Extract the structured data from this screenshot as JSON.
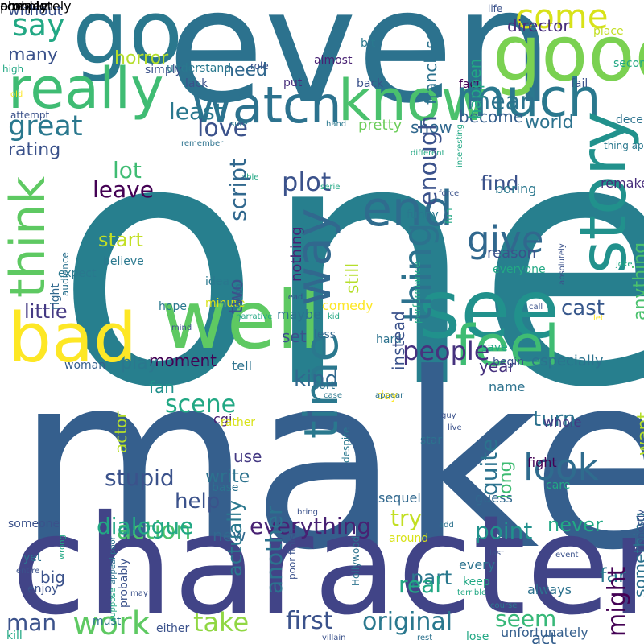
{
  "words": [
    {
      "text": "one",
      "color": "#277f8e",
      "vertical": false
    },
    {
      "text": "make",
      "color": "#355f8d",
      "vertical": false
    },
    {
      "text": "character",
      "color": "#414487",
      "vertical": false
    },
    {
      "text": "even",
      "color": "#2c728e",
      "vertical": false
    },
    {
      "text": "go",
      "color": "#2a788e",
      "vertical": false
    },
    {
      "text": "good",
      "color": "#7ad151",
      "vertical": false
    },
    {
      "text": "well",
      "color": "#5ec962",
      "vertical": false
    },
    {
      "text": "see",
      "color": "#21918c",
      "vertical": false
    },
    {
      "text": "bad",
      "color": "#fde725",
      "vertical": false
    },
    {
      "text": "really",
      "color": "#3fbc73",
      "vertical": false
    },
    {
      "text": "watch",
      "color": "#2c728e",
      "vertical": false
    },
    {
      "text": "know",
      "color": "#4ac16d",
      "vertical": false
    },
    {
      "text": "much",
      "color": "#2a788e",
      "vertical": false
    },
    {
      "text": "end",
      "color": "#2f6c8e",
      "vertical": false
    },
    {
      "text": "story",
      "color": "#21918c",
      "vertical": true
    },
    {
      "text": "feel",
      "color": "#3fbc73",
      "vertical": false
    },
    {
      "text": "way",
      "color": "#31688e",
      "vertical": true
    },
    {
      "text": "time",
      "color": "#2a788e",
      "vertical": true
    },
    {
      "text": "look",
      "color": "#2f6c8e",
      "vertical": false
    },
    {
      "text": "think",
      "color": "#5ec962",
      "vertical": true
    },
    {
      "text": "come",
      "color": "#d8e219",
      "vertical": false
    },
    {
      "text": "say",
      "color": "#22a884",
      "vertical": false
    },
    {
      "text": "give",
      "color": "#31688e",
      "vertical": false
    },
    {
      "text": "thing",
      "color": "#2c728e",
      "vertical": true
    },
    {
      "text": "great",
      "color": "#2a788e",
      "vertical": false
    },
    {
      "text": "people",
      "color": "#46327e",
      "vertical": false
    },
    {
      "text": "work",
      "color": "#5ec962",
      "vertical": false
    },
    {
      "text": "take",
      "color": "#90d743",
      "vertical": false
    },
    {
      "text": "first",
      "color": "#3b528b",
      "vertical": false
    },
    {
      "text": "original",
      "color": "#2a788e",
      "vertical": false
    },
    {
      "text": "plot",
      "color": "#3b528b",
      "vertical": false
    },
    {
      "text": "love",
      "color": "#3b528b",
      "vertical": false
    },
    {
      "text": "least",
      "color": "#2a788e",
      "vertical": false
    },
    {
      "text": "mean",
      "color": "#2c728e",
      "vertical": false
    },
    {
      "text": "scene",
      "color": "#22a884",
      "vertical": false
    },
    {
      "text": "action",
      "color": "#4ac16d",
      "vertical": false
    },
    {
      "text": "everything",
      "color": "#482173",
      "vertical": false
    },
    {
      "text": "try",
      "color": "#c2df23",
      "vertical": false
    },
    {
      "text": "seem",
      "color": "#37b878",
      "vertical": false
    },
    {
      "text": "man",
      "color": "#3b528b",
      "vertical": false
    },
    {
      "text": "lot",
      "color": "#3fbc73",
      "vertical": false
    },
    {
      "text": "leave",
      "color": "#440154",
      "vertical": false
    },
    {
      "text": "find",
      "color": "#3b528b",
      "vertical": false
    },
    {
      "text": "kind",
      "color": "#31688e",
      "vertical": false
    },
    {
      "text": "point",
      "color": "#21918c",
      "vertical": false
    },
    {
      "text": "never",
      "color": "#22a884",
      "vertical": false
    },
    {
      "text": "turn",
      "color": "#2c728e",
      "vertical": false
    },
    {
      "text": "cast",
      "color": "#38588c",
      "vertical": false
    },
    {
      "text": "little",
      "color": "#443983",
      "vertical": false
    },
    {
      "text": "start",
      "color": "#c2df23",
      "vertical": false
    },
    {
      "text": "horror",
      "color": "#b5de2b",
      "vertical": false
    },
    {
      "text": "many",
      "color": "#3b528b",
      "vertical": false
    },
    {
      "text": "need",
      "color": "#31688e",
      "vertical": false
    },
    {
      "text": "director",
      "color": "#472d7b",
      "vertical": false
    },
    {
      "text": "world",
      "color": "#2c728e",
      "vertical": false
    },
    {
      "text": "become",
      "color": "#355f8d",
      "vertical": false
    },
    {
      "text": "rating",
      "color": "#3b528b",
      "vertical": false
    },
    {
      "text": "show",
      "color": "#31688e",
      "vertical": false
    },
    {
      "text": "part",
      "color": "#2a788e",
      "vertical": false
    },
    {
      "text": "real",
      "color": "#22a884",
      "vertical": false
    },
    {
      "text": "far",
      "color": "#2a788e",
      "vertical": false
    },
    {
      "text": "moment",
      "color": "#440154",
      "vertical": false
    },
    {
      "text": "fan",
      "color": "#21918c",
      "vertical": false
    },
    {
      "text": "set",
      "color": "#3b528b",
      "vertical": false
    },
    {
      "text": "write",
      "color": "#2c728e",
      "vertical": false
    },
    {
      "text": "big",
      "color": "#3b528b",
      "vertical": false
    },
    {
      "text": "new",
      "color": "#31688e",
      "vertical": false
    },
    {
      "text": "use",
      "color": "#443983",
      "vertical": false
    },
    {
      "text": "act",
      "color": "#355f8d",
      "vertical": false
    },
    {
      "text": "year",
      "color": "#46327e",
      "vertical": false
    },
    {
      "text": "especially",
      "color": "#2c728e",
      "vertical": false
    },
    {
      "text": "without",
      "color": "#3b528b",
      "vertical": false
    },
    {
      "text": "play",
      "color": "#2a788e",
      "vertical": false
    },
    {
      "text": "pretty",
      "color": "#6ccd5a",
      "vertical": false
    },
    {
      "text": "reason",
      "color": "#3b528b",
      "vertical": false
    },
    {
      "text": "boring",
      "color": "#2a788e",
      "vertical": false
    },
    {
      "text": "funny",
      "color": "#2a788e",
      "vertical": false
    },
    {
      "text": "whole",
      "color": "#443983",
      "vertical": false
    },
    {
      "text": "always",
      "color": "#2c728e",
      "vertical": false
    },
    {
      "text": "every",
      "color": "#2c728e",
      "vertical": false
    },
    {
      "text": "guess",
      "color": "#31688e",
      "vertical": false
    },
    {
      "text": "sequel",
      "color": "#31688e",
      "vertical": false
    },
    {
      "text": "unfortunately",
      "color": "#355f8d",
      "vertical": false
    },
    {
      "text": "remake",
      "color": "#472d7b",
      "vertical": false
    },
    {
      "text": "maybe",
      "color": "#2c728e",
      "vertical": false
    },
    {
      "text": "comedy",
      "color": "#fde725",
      "vertical": false
    },
    {
      "text": "tell",
      "color": "#2c728e",
      "vertical": false
    },
    {
      "text": "cgi",
      "color": "#482173",
      "vertical": false
    },
    {
      "text": "rather",
      "color": "#d8e219",
      "vertical": false
    },
    {
      "text": "base",
      "color": "#2c728e",
      "vertical": false
    },
    {
      "text": "star",
      "color": "#2c728e",
      "vertical": false
    },
    {
      "text": "fight",
      "color": "#440154",
      "vertical": false
    },
    {
      "text": "care",
      "color": "#22a884",
      "vertical": false
    },
    {
      "text": "around",
      "color": "#d8e219",
      "vertical": false
    },
    {
      "text": "keep",
      "color": "#22a884",
      "vertical": false
    },
    {
      "text": "lose",
      "color": "#22a884",
      "vertical": false
    },
    {
      "text": "kill",
      "color": "#22a884",
      "vertical": false
    },
    {
      "text": "either",
      "color": "#3b528b",
      "vertical": false
    },
    {
      "text": "yet",
      "color": "#2c728e",
      "vertical": false
    },
    {
      "text": "someone",
      "color": "#3b528b",
      "vertical": false
    },
    {
      "text": "enjoy",
      "color": "#3b528b",
      "vertical": false
    },
    {
      "text": "woman",
      "color": "#355f8d",
      "vertical": false
    },
    {
      "text": "believe",
      "color": "#2a788e",
      "vertical": false
    },
    {
      "text": "expect",
      "color": "#2a788e",
      "vertical": false
    },
    {
      "text": "idea",
      "color": "#2a788e",
      "vertical": false
    },
    {
      "text": "hope",
      "color": "#2a788e",
      "vertical": false
    },
    {
      "text": "minute",
      "color": "#d8e219",
      "vertical": false
    },
    {
      "text": "less",
      "color": "#31688e",
      "vertical": false
    },
    {
      "text": "hard",
      "color": "#2c728e",
      "vertical": false
    },
    {
      "text": "save",
      "color": "#22a884",
      "vertical": false
    },
    {
      "text": "begin",
      "color": "#3b528b",
      "vertical": false
    },
    {
      "text": "sort",
      "color": "#2c728e",
      "vertical": false
    },
    {
      "text": "day",
      "color": "#fde725",
      "vertical": false
    },
    {
      "text": "name",
      "color": "#2c728e",
      "vertical": false
    },
    {
      "text": "put",
      "color": "#472d7b",
      "vertical": false
    },
    {
      "text": "back",
      "color": "#3b528b",
      "vertical": false
    },
    {
      "text": "fact",
      "color": "#440154",
      "vertical": false
    },
    {
      "text": "almost",
      "color": "#482173",
      "vertical": false
    },
    {
      "text": "bit",
      "color": "#2a788e",
      "vertical": false
    },
    {
      "text": "lack",
      "color": "#3b528b",
      "vertical": false
    },
    {
      "text": "simply",
      "color": "#3b528b",
      "vertical": false
    },
    {
      "text": "understand",
      "color": "#2a788e",
      "vertical": false
    },
    {
      "text": "fail",
      "color": "#3b528b",
      "vertical": false
    },
    {
      "text": "decent",
      "color": "#2c728e",
      "vertical": false
    },
    {
      "text": "second",
      "color": "#22a884",
      "vertical": false
    },
    {
      "text": "place",
      "color": "#c2df23",
      "vertical": false
    },
    {
      "text": "life",
      "color": "#3b528b",
      "vertical": false
    },
    {
      "text": "role",
      "color": "#3b528b",
      "vertical": false
    },
    {
      "text": "high",
      "color": "#22a884",
      "vertical": false
    },
    {
      "text": "old",
      "color": "#fde725",
      "vertical": false
    },
    {
      "text": "attempt",
      "color": "#3b528b",
      "vertical": false
    },
    {
      "text": "remember",
      "color": "#2c728e",
      "vertical": false
    },
    {
      "text": "sure",
      "color": "#2a788e",
      "vertical": false
    },
    {
      "text": "hand",
      "color": "#2a788e",
      "vertical": false
    },
    {
      "text": "thing appeal",
      "color": "#2a788e",
      "vertical": false
    },
    {
      "text": "different",
      "color": "#22a884",
      "vertical": false
    },
    {
      "text": "serie",
      "color": "#22a884",
      "vertical": false
    },
    {
      "text": "able",
      "color": "#22a884",
      "vertical": false
    },
    {
      "text": "force",
      "color": "#3b528b",
      "vertical": false
    },
    {
      "text": "everyone",
      "color": "#22a884",
      "vertical": false
    },
    {
      "text": "joke",
      "color": "#22a884",
      "vertical": false
    },
    {
      "text": "call",
      "color": "#3b528b",
      "vertical": false
    },
    {
      "text": "let",
      "color": "#fde725",
      "vertical": false
    },
    {
      "text": "lead",
      "color": "#3b528b",
      "vertical": false
    },
    {
      "text": "narrative",
      "color": "#22a884",
      "vertical": false
    },
    {
      "text": "kid",
      "color": "#22a884",
      "vertical": false
    },
    {
      "text": "mind",
      "color": "#3b528b",
      "vertical": false
    },
    {
      "text": "case",
      "color": "#2a788e",
      "vertical": false
    },
    {
      "text": "appear",
      "color": "#2c728e",
      "vertical": false
    },
    {
      "text": "guy",
      "color": "#3b528b",
      "vertical": false
    },
    {
      "text": "live",
      "color": "#3b528b",
      "vertical": false
    },
    {
      "text": "bring",
      "color": "#3b528b",
      "vertical": false
    },
    {
      "text": "add",
      "color": "#2c728e",
      "vertical": false
    },
    {
      "text": "last",
      "color": "#3b528b",
      "vertical": false
    },
    {
      "text": "event",
      "color": "#3b528b",
      "vertical": false
    },
    {
      "text": "entire",
      "color": "#3b528b",
      "vertical": false
    },
    {
      "text": "may",
      "color": "#3b528b",
      "vertical": false
    },
    {
      "text": "terrible",
      "color": "#22a884",
      "vertical": false
    },
    {
      "text": "course",
      "color": "#2a788e",
      "vertical": false
    },
    {
      "text": "villain",
      "color": "#3b528b",
      "vertical": false
    },
    {
      "text": "rest",
      "color": "#2c728e",
      "vertical": false
    },
    {
      "text": "must",
      "color": "#2c728e",
      "vertical": false
    },
    {
      "text": "stupid",
      "color": "#3b528b",
      "vertical": false
    },
    {
      "text": "dialogue",
      "color": "#22a884",
      "vertical": false
    },
    {
      "text": "help",
      "color": "#3b528b",
      "vertical": false
    },
    {
      "text": "actor",
      "color": "#b5de2b",
      "vertical": true
    },
    {
      "text": "actually",
      "color": "#2a788e",
      "vertical": true
    },
    {
      "text": "another",
      "color": "#2c728e",
      "vertical": true
    },
    {
      "text": "might",
      "color": "#440154",
      "vertical": true
    },
    {
      "text": "quite",
      "color": "#2c728e",
      "vertical": true
    },
    {
      "text": "script",
      "color": "#31688e",
      "vertical": true
    },
    {
      "text": "two",
      "color": "#3b528b",
      "vertical": true
    },
    {
      "text": "nothing",
      "color": "#482173",
      "vertical": true
    },
    {
      "text": "still",
      "color": "#b5de2b",
      "vertical": true
    },
    {
      "text": "enough",
      "color": "#3b528b",
      "vertical": true
    },
    {
      "text": "instead",
      "color": "#3b528b",
      "vertical": true
    },
    {
      "text": "anything",
      "color": "#4ac16d",
      "vertical": true
    },
    {
      "text": "want",
      "color": "#b5de2b",
      "vertical": true
    },
    {
      "text": "long",
      "color": "#3fbc73",
      "vertical": true
    },
    {
      "text": "something",
      "color": "#2c728e",
      "vertical": true
    },
    {
      "text": "franchise",
      "color": "#2c728e",
      "vertical": true
    },
    {
      "text": "happen",
      "color": "#22a884",
      "vertical": true
    },
    {
      "text": "right",
      "color": "#31688e",
      "vertical": true
    },
    {
      "text": "audience",
      "color": "#2c728e",
      "vertical": true
    },
    {
      "text": "though",
      "color": "#355f8d",
      "vertical": true
    },
    {
      "text": "performance",
      "color": "#22a884",
      "vertical": true
    },
    {
      "text": "fun",
      "color": "#22a884",
      "vertical": true
    },
    {
      "text": "absolutely",
      "color": "#3b528b",
      "vertical": true
    },
    {
      "text": "interesting",
      "color": "#22a884",
      "vertical": true
    },
    {
      "text": "despite",
      "color": "#2a788e",
      "vertical": true
    },
    {
      "text": "appeal poor",
      "color": "#2c728e",
      "vertical": true
    },
    {
      "text": "wrong",
      "color": "#22a884",
      "vertical": true
    },
    {
      "text": "suppose",
      "color": "#22a884",
      "vertical": true
    },
    {
      "text": "probably",
      "color": "#3b528b",
      "vertical": true
    },
    {
      "text": "poor finish",
      "color": "#3b528b",
      "vertical": true
    },
    {
      "text": "Hollywood",
      "color": "#2c728e",
      "vertical": true
    },
    {
      "text": "honestly",
      "color": "#3b528b",
      "vertical": true
    },
    {
      "text": "completely",
      "color": "#2c728e",
      "vertical": true
    },
    {
      "text": "problem",
      "color": "#22a884",
      "vertical": true
    },
    {
      "text": "already",
      "color": "#2c728e",
      "vertical": true
    }
  ]
}
